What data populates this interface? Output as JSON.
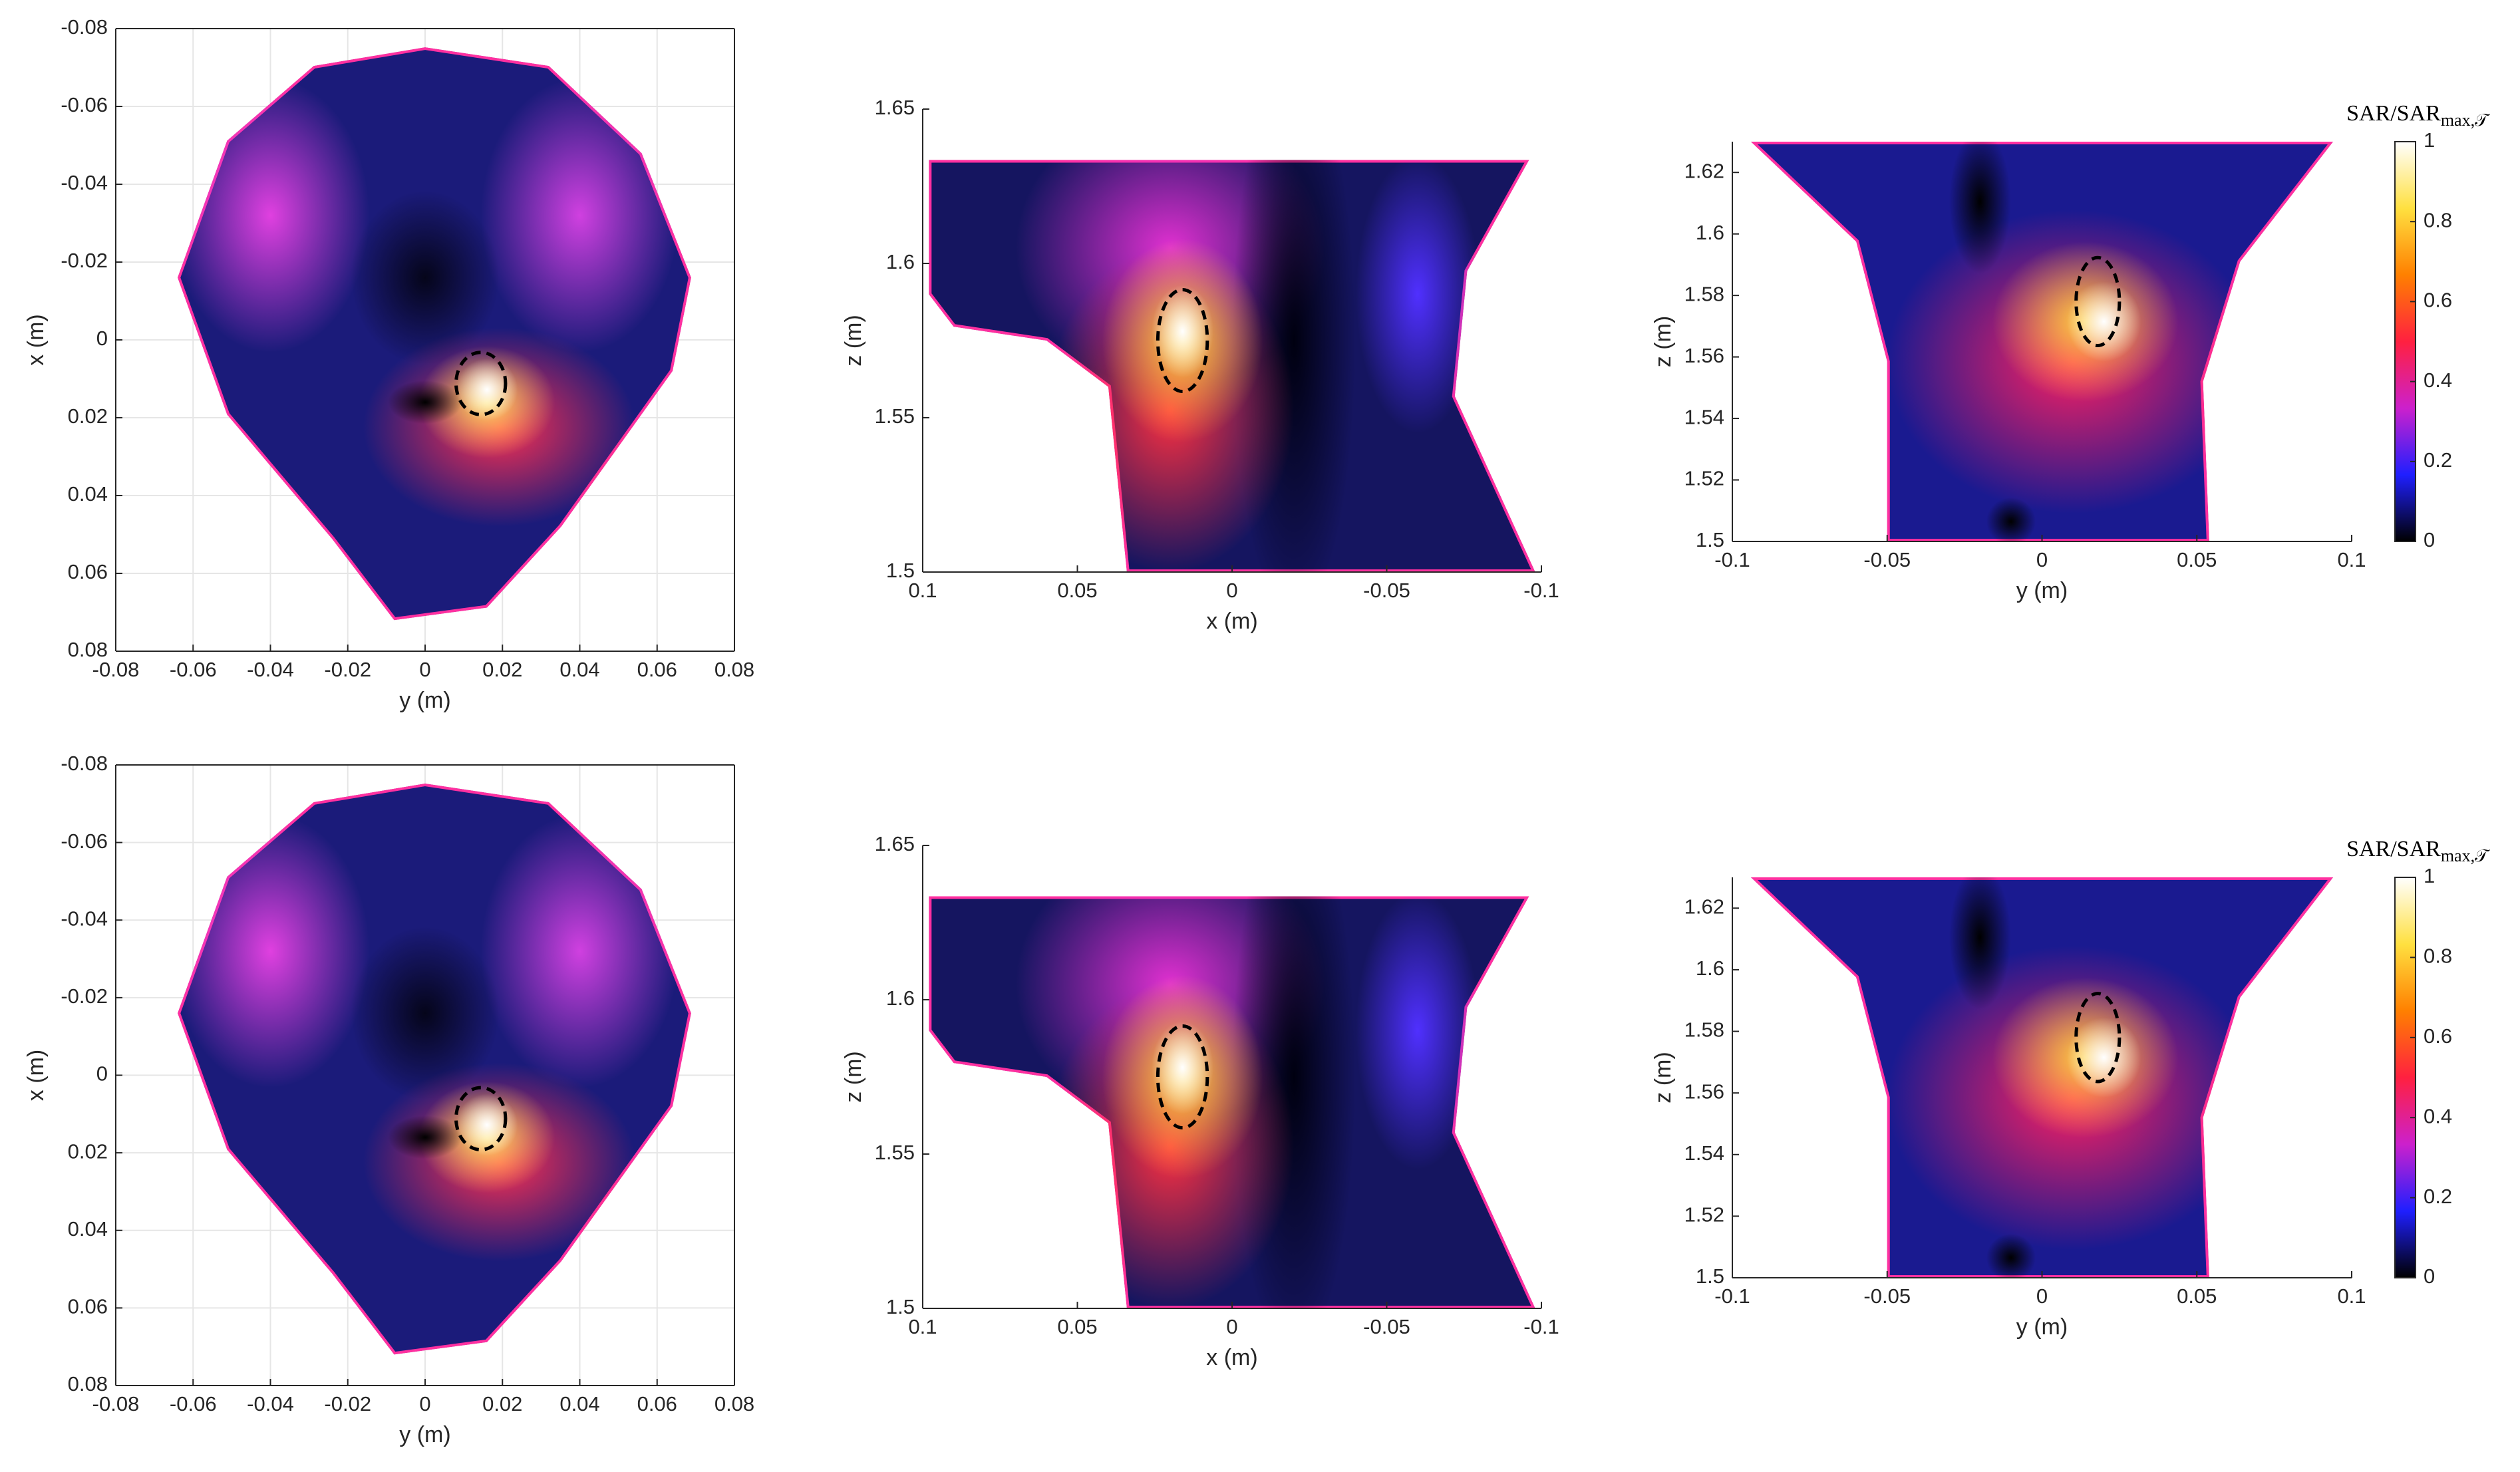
{
  "chart_data": [
    {
      "type": "heatmap",
      "xlabel": "y (m)",
      "ylabel": "x (m)",
      "xlim": [
        -0.08,
        0.08
      ],
      "ylim": [
        0.08,
        -0.08
      ],
      "xticks": [
        -0.08,
        -0.06,
        -0.04,
        -0.02,
        0,
        0.02,
        0.04,
        0.06,
        0.08
      ],
      "yticks": [
        0.08,
        0.06,
        0.04,
        0.02,
        0,
        -0.02,
        -0.04,
        -0.06,
        -0.08
      ],
      "grid": true,
      "box": true
    },
    {
      "type": "heatmap",
      "xlabel": "x (m)",
      "ylabel": "z (m)",
      "xlim": [
        0.1,
        -0.1
      ],
      "ylim": [
        1.5,
        1.65
      ],
      "xticks": [
        0.1,
        0.05,
        0,
        -0.05,
        -0.1
      ],
      "yticks": [
        1.5,
        1.55,
        1.6,
        1.65
      ],
      "grid": false,
      "box": false
    },
    {
      "type": "heatmap",
      "xlabel": "y (m)",
      "ylabel": "z (m)",
      "xlim": [
        -0.1,
        0.1
      ],
      "ylim": [
        1.5,
        1.63
      ],
      "xticks": [
        -0.1,
        -0.05,
        0,
        0.05,
        0.1
      ],
      "yticks": [
        1.5,
        1.52,
        1.54,
        1.56,
        1.58,
        1.6,
        1.62
      ],
      "grid": false,
      "box": false,
      "colorbar": {
        "label": "SAR/SAR",
        "label_sub": "max,𝒯",
        "clim": [
          0,
          1
        ],
        "ticks": [
          0,
          0.2,
          0.4,
          0.6,
          0.8,
          1
        ],
        "colormap": [
          "#000000",
          "#1f1fff",
          "#cc20cc",
          "#ff2040",
          "#ff8000",
          "#ffe040",
          "#ffffff"
        ]
      }
    },
    {
      "type": "heatmap",
      "xlabel": "y (m)",
      "ylabel": "x (m)",
      "xlim": [
        -0.08,
        0.08
      ],
      "ylim": [
        0.08,
        -0.08
      ],
      "xticks": [
        -0.08,
        -0.06,
        -0.04,
        -0.02,
        0,
        0.02,
        0.04,
        0.06,
        0.08
      ],
      "yticks": [
        0.08,
        0.06,
        0.04,
        0.02,
        0,
        -0.02,
        -0.04,
        -0.06,
        -0.08
      ],
      "grid": true,
      "box": true
    },
    {
      "type": "heatmap",
      "xlabel": "x (m)",
      "ylabel": "z (m)",
      "xlim": [
        0.1,
        -0.1
      ],
      "ylim": [
        1.5,
        1.65
      ],
      "xticks": [
        0.1,
        0.05,
        0,
        -0.05,
        -0.1
      ],
      "yticks": [
        1.5,
        1.55,
        1.6,
        1.65
      ],
      "grid": false,
      "box": false
    },
    {
      "type": "heatmap",
      "xlabel": "y (m)",
      "ylabel": "z (m)",
      "xlim": [
        -0.1,
        0.1
      ],
      "ylim": [
        1.5,
        1.63
      ],
      "xticks": [
        -0.1,
        -0.05,
        0,
        0.05,
        0.1
      ],
      "yticks": [
        1.5,
        1.52,
        1.54,
        1.56,
        1.58,
        1.6,
        1.62
      ],
      "grid": false,
      "box": false,
      "colorbar": {
        "label": "SAR/SAR",
        "label_sub": "max,𝒯",
        "clim": [
          0,
          1
        ],
        "ticks": [
          0,
          0.2,
          0.4,
          0.6,
          0.8,
          1
        ],
        "colormap": [
          "#000000",
          "#1f1fff",
          "#cc20cc",
          "#ff2040",
          "#ff8000",
          "#ffe040",
          "#ffffff"
        ]
      }
    }
  ]
}
